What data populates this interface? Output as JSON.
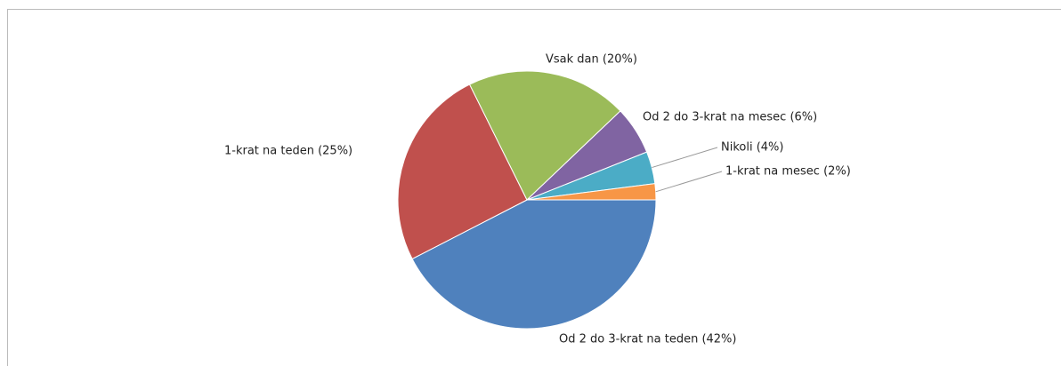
{
  "chart_data": {
    "type": "pie",
    "values": [
      42,
      25,
      20,
      6,
      4,
      2
    ],
    "value_labels": [
      "Od 2 do 3-krat na teden (42%)",
      "1-krat na teden (25%)",
      "Vsak dan (20%)",
      "Od 2 do 3-krat na mesec (6%)",
      "Nikoli (4%)",
      "1-krat na mesec (2%)"
    ],
    "colors": [
      "#4f81bd",
      "#c0504d",
      "#9bbb59",
      "#8064a2",
      "#4bacc6",
      "#f79646"
    ]
  }
}
